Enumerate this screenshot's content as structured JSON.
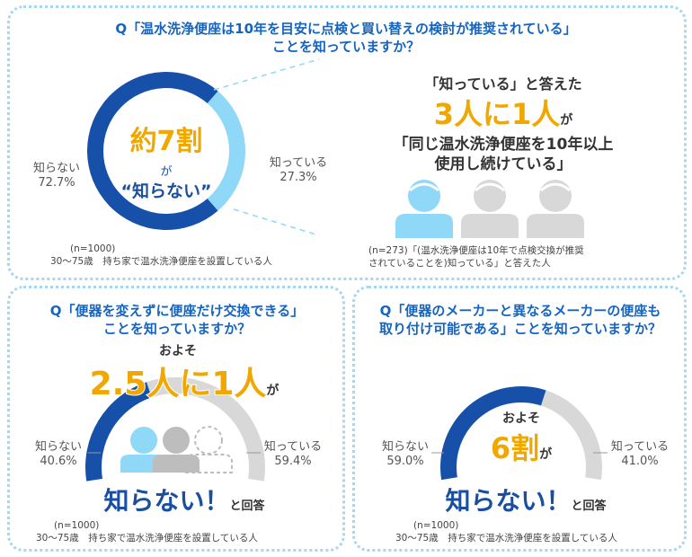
{
  "colors": {
    "navy": "#1650a8",
    "light": "#8fd8f8",
    "gray": "#d8d8d8",
    "orange": "#f0a800",
    "title": "#1565c0",
    "dashed": "#8fd8f8"
  },
  "top": {
    "question_line1": "Q「温水洗浄便座は10年を目安に点検と買い替えの検討が推奨されている」",
    "question_line2": "ことを知っていますか？",
    "center_big": "約7割",
    "center_ga": "が",
    "center_quote": "“知らない”",
    "left_label": "知らない",
    "left_pct": "72.7%",
    "right_label": "知っている",
    "right_pct": "27.3%",
    "callout_line1": "「知っている」と答えた",
    "callout_big": "3人に1人",
    "callout_ga": "が",
    "callout_line3": "「同じ温水洗浄便座を10年以上",
    "callout_line4": "使用し続けている」",
    "note_n": "(n=1000)",
    "note_desc": "30～75歳　持ち家で温水洗浄便座を設置している人",
    "callout_note_line1": "(n=273)「(温水洗浄便座は10年で点検交換が推奨",
    "callout_note_line2": "されていることを)知っている」と答えた人"
  },
  "bottom_left": {
    "question_line1": "Q「便器を変えずに便座だけ交換できる」",
    "question_line2": "ことを知っていますか？",
    "oyoso": "およそ",
    "big": "2.5人に1人",
    "ga": "が",
    "left_label": "知らない",
    "left_pct": "40.6%",
    "right_label": "知っている",
    "right_pct": "59.4%",
    "shiranai": "知らない！",
    "to_kaito": "と回答",
    "note_n": "(n=1000)",
    "note_desc": "30～75歳　持ち家で温水洗浄便座を設置している人"
  },
  "bottom_right": {
    "question_line1": "Q「便器のメーカーと異なるメーカーの便座も",
    "question_line2": "取り付け可能である」ことを知っていますか？",
    "oyoso": "およそ",
    "big": "6割",
    "ga": "が",
    "left_label": "知らない",
    "left_pct": "59.0%",
    "right_label": "知っている",
    "right_pct": "41.0%",
    "shiranai": "知らない！",
    "to_kaito": "と回答",
    "note_n": "(n=1000)",
    "note_desc": "30～75歳　持ち家で温水洗浄便座を設置している人"
  },
  "chart_data": [
    {
      "type": "pie",
      "title": "Q「温水洗浄便座は10年を目安に点検と買い替えの検討が推奨されている」ことを知っていますか？",
      "categories": [
        "知らない",
        "知っている"
      ],
      "values": [
        72.7,
        27.3
      ]
    },
    {
      "type": "pie",
      "title": "Q「便器を変えずに便座だけ交換できる」ことを知っていますか？",
      "categories": [
        "知らない",
        "知っている"
      ],
      "values": [
        40.6,
        59.4
      ]
    },
    {
      "type": "pie",
      "title": "Q「便器のメーカーと異なるメーカーの便座も取り付け可能である」ことを知っていますか？",
      "categories": [
        "知らない",
        "知っている"
      ],
      "values": [
        59.0,
        41.0
      ]
    }
  ]
}
